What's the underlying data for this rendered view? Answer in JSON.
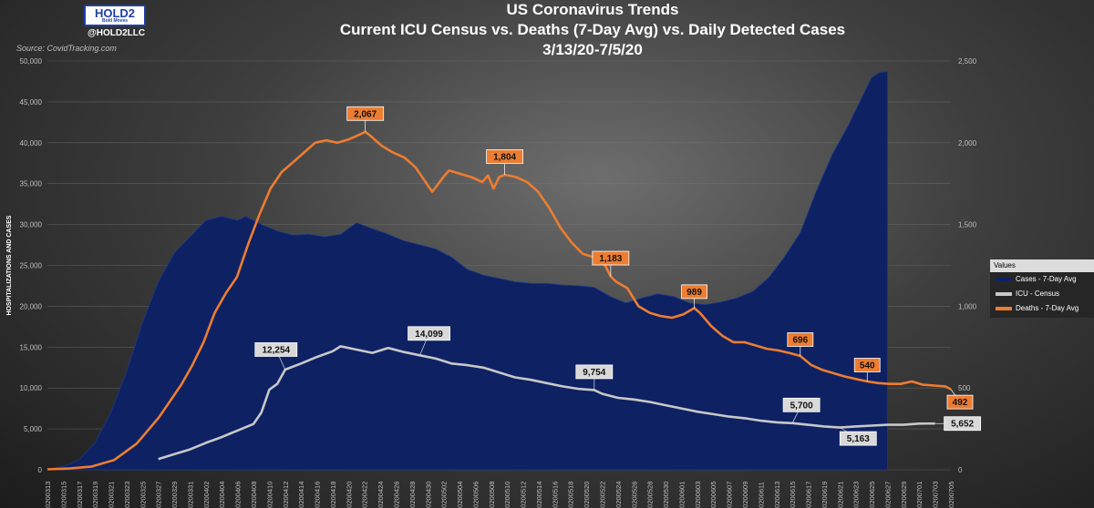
{
  "header": {
    "logo_text": "HOLD2",
    "logo_subtext": "Bold Moves",
    "handle": "@HOLD2LLC",
    "source": "Source: CovidTracking.com"
  },
  "title": {
    "line1": "US Coronavirus Trends",
    "line2": "Current ICU Census vs. Deaths (7-Day Avg) vs. Daily Detected Cases",
    "line3": "3/13/20-7/5/20"
  },
  "legend": {
    "title": "Values",
    "items": [
      "Cases - 7-Day Avg",
      "ICU - Census",
      "Deaths - 7-Day Avg"
    ]
  },
  "colors": {
    "cases": "#0e2163",
    "icu": "#c8c8c8",
    "deaths": "#ed7d31",
    "axis_text": "#bfbfbf"
  },
  "chart_data": {
    "type": "area+line",
    "ylabel": "HOSPITALIZATIONS AND CASES",
    "ylim": [
      0,
      50000
    ],
    "yticks": [
      "0",
      "5,000",
      "10,000",
      "15,000",
      "20,000",
      "25,000",
      "30,000",
      "35,000",
      "40,000",
      "45,000",
      "50,000"
    ],
    "y2lim": [
      0,
      2500
    ],
    "y2ticks": [
      "0",
      "500",
      "1,000",
      "1,500",
      "2,000",
      "2,500"
    ],
    "x_labels": [
      "20200313",
      "20200315",
      "20200317",
      "20200319",
      "20200321",
      "20200323",
      "20200325",
      "20200327",
      "20200329",
      "20200331",
      "20200402",
      "20200404",
      "20200406",
      "20200408",
      "20200410",
      "20200412",
      "20200414",
      "20200416",
      "20200418",
      "20200420",
      "20200422",
      "20200424",
      "20200426",
      "20200428",
      "20200430",
      "20200502",
      "20200504",
      "20200506",
      "20200508",
      "20200510",
      "20200512",
      "20200514",
      "20200516",
      "20200518",
      "20200520",
      "20200522",
      "20200524",
      "20200526",
      "20200528",
      "20200530",
      "20200601",
      "20200603",
      "20200605",
      "20200607",
      "20200609",
      "20200611",
      "20200613",
      "20200615",
      "20200617",
      "20200619",
      "20200621",
      "20200623",
      "20200625",
      "20200627",
      "20200629",
      "20200701",
      "20200703",
      "20200705"
    ],
    "series": [
      {
        "name": "Cases - 7-Day Avg",
        "axis": "left",
        "style": "area",
        "points": [
          [
            0,
            100
          ],
          [
            2,
            400
          ],
          [
            4,
            1200
          ],
          [
            6,
            3300
          ],
          [
            8,
            7000
          ],
          [
            10,
            12000
          ],
          [
            12,
            18000
          ],
          [
            14,
            23000
          ],
          [
            16,
            26500
          ],
          [
            18,
            28500
          ],
          [
            20,
            30500
          ],
          [
            22,
            31000
          ],
          [
            24,
            30500
          ],
          [
            25,
            31000
          ],
          [
            27,
            30000
          ],
          [
            29,
            29200
          ],
          [
            31,
            28700
          ],
          [
            33,
            28800
          ],
          [
            35,
            28500
          ],
          [
            37,
            28800
          ],
          [
            39,
            30200
          ],
          [
            41,
            29500
          ],
          [
            43,
            28800
          ],
          [
            45,
            28000
          ],
          [
            47,
            27500
          ],
          [
            49,
            27000
          ],
          [
            51,
            26000
          ],
          [
            53,
            24500
          ],
          [
            55,
            23800
          ],
          [
            57,
            23400
          ],
          [
            59,
            23000
          ],
          [
            61,
            22800
          ],
          [
            63,
            22800
          ],
          [
            65,
            22600
          ],
          [
            67,
            22500
          ],
          [
            69,
            22300
          ],
          [
            71,
            21200
          ],
          [
            73,
            20400
          ],
          [
            75,
            21000
          ],
          [
            77,
            21500
          ],
          [
            79,
            21200
          ],
          [
            81,
            20400
          ],
          [
            83,
            20200
          ],
          [
            85,
            20500
          ],
          [
            87,
            21000
          ],
          [
            89,
            21800
          ],
          [
            91,
            23500
          ],
          [
            93,
            26000
          ],
          [
            95,
            29000
          ],
          [
            97,
            34000
          ],
          [
            99,
            38500
          ],
          [
            101,
            42000
          ],
          [
            103,
            46000
          ],
          [
            104,
            48000
          ],
          [
            105,
            48600
          ],
          [
            106,
            48700
          ]
        ]
      },
      {
        "name": "ICU - Census",
        "axis": "left",
        "style": "line",
        "points": [
          [
            14,
            1300
          ],
          [
            16,
            1900
          ],
          [
            18,
            2500
          ],
          [
            20,
            3300
          ],
          [
            22,
            4000
          ],
          [
            24,
            4800
          ],
          [
            26,
            5600
          ],
          [
            27,
            7000
          ],
          [
            28,
            9800
          ],
          [
            29,
            10500
          ],
          [
            30,
            12254
          ],
          [
            32,
            13000
          ],
          [
            34,
            13800
          ],
          [
            36,
            14500
          ],
          [
            37,
            15100
          ],
          [
            39,
            14700
          ],
          [
            41,
            14300
          ],
          [
            43,
            14900
          ],
          [
            45,
            14400
          ],
          [
            47,
            14000
          ],
          [
            49,
            13600
          ],
          [
            51,
            13000
          ],
          [
            53,
            12800
          ],
          [
            55,
            12500
          ],
          [
            57,
            11900
          ],
          [
            59,
            11300
          ],
          [
            61,
            11000
          ],
          [
            63,
            10600
          ],
          [
            65,
            10200
          ],
          [
            67,
            9900
          ],
          [
            69,
            9754
          ],
          [
            70,
            9300
          ],
          [
            72,
            8800
          ],
          [
            74,
            8600
          ],
          [
            76,
            8300
          ],
          [
            78,
            7900
          ],
          [
            80,
            7500
          ],
          [
            82,
            7100
          ],
          [
            84,
            6800
          ],
          [
            86,
            6500
          ],
          [
            88,
            6300
          ],
          [
            90,
            6000
          ],
          [
            92,
            5800
          ],
          [
            94,
            5700
          ],
          [
            96,
            5500
          ],
          [
            98,
            5300
          ],
          [
            100,
            5163
          ],
          [
            102,
            5300
          ],
          [
            104,
            5400
          ],
          [
            106,
            5500
          ],
          [
            108,
            5500
          ],
          [
            110,
            5650
          ],
          [
            112,
            5652
          ]
        ]
      },
      {
        "name": "Deaths - 7-Day Avg",
        "axis": "right",
        "style": "line",
        "points": [
          [
            0,
            3
          ],
          [
            4,
            8
          ],
          [
            8,
            20
          ],
          [
            12,
            60
          ],
          [
            16,
            160
          ],
          [
            20,
            320
          ],
          [
            24,
            520
          ],
          [
            26,
            640
          ],
          [
            28,
            780
          ],
          [
            30,
            960
          ],
          [
            32,
            1080
          ],
          [
            34,
            1180
          ],
          [
            36,
            1380
          ],
          [
            38,
            1560
          ],
          [
            40,
            1720
          ],
          [
            42,
            1820
          ],
          [
            44,
            1880
          ],
          [
            46,
            1940
          ],
          [
            48,
            2000
          ],
          [
            50,
            2015
          ],
          [
            52,
            2000
          ],
          [
            54,
            2020
          ],
          [
            56,
            2050
          ],
          [
            57,
            2067
          ],
          [
            58,
            2040
          ],
          [
            60,
            1980
          ],
          [
            62,
            1940
          ],
          [
            64,
            1910
          ],
          [
            66,
            1850
          ],
          [
            68,
            1750
          ],
          [
            69,
            1700
          ],
          [
            71,
            1790
          ],
          [
            72,
            1830
          ],
          [
            74,
            1810
          ],
          [
            76,
            1790
          ],
          [
            78,
            1760
          ],
          [
            79,
            1800
          ],
          [
            80,
            1720
          ],
          [
            81,
            1790
          ],
          [
            82,
            1804
          ],
          [
            84,
            1790
          ],
          [
            86,
            1760
          ],
          [
            88,
            1700
          ],
          [
            90,
            1600
          ],
          [
            92,
            1480
          ],
          [
            94,
            1390
          ],
          [
            96,
            1320
          ],
          [
            98,
            1300
          ],
          [
            100,
            1250
          ],
          [
            101,
            1183
          ],
          [
            102,
            1150
          ],
          [
            104,
            1110
          ],
          [
            106,
            1000
          ],
          [
            108,
            960
          ],
          [
            110,
            940
          ],
          [
            112,
            930
          ],
          [
            114,
            950
          ],
          [
            116,
            989
          ],
          [
            117,
            960
          ],
          [
            119,
            880
          ],
          [
            121,
            820
          ],
          [
            123,
            780
          ],
          [
            125,
            780
          ],
          [
            127,
            760
          ],
          [
            129,
            740
          ],
          [
            131,
            730
          ],
          [
            133,
            715
          ],
          [
            135,
            696
          ],
          [
            137,
            640
          ],
          [
            139,
            610
          ],
          [
            141,
            590
          ],
          [
            143,
            570
          ],
          [
            145,
            555
          ],
          [
            147,
            540
          ],
          [
            149,
            530
          ],
          [
            151,
            525
          ],
          [
            153,
            525
          ],
          [
            155,
            540
          ],
          [
            157,
            520
          ],
          [
            159,
            515
          ],
          [
            161,
            510
          ],
          [
            162,
            492
          ]
        ]
      }
    ],
    "annotations": [
      {
        "series": "Deaths - 7-Day Avg",
        "label": "2,067"
      },
      {
        "series": "Deaths - 7-Day Avg",
        "label": "1,804"
      },
      {
        "series": "Deaths - 7-Day Avg",
        "label": "1,183"
      },
      {
        "series": "Deaths - 7-Day Avg",
        "label": "989"
      },
      {
        "series": "Deaths - 7-Day Avg",
        "label": "696"
      },
      {
        "series": "Deaths - 7-Day Avg",
        "label": "540"
      },
      {
        "series": "Deaths - 7-Day Avg",
        "label": "492"
      },
      {
        "series": "ICU - Census",
        "label": "12,254"
      },
      {
        "series": "ICU - Census",
        "label": "14,099"
      },
      {
        "series": "ICU - Census",
        "label": "9,754"
      },
      {
        "series": "ICU - Census",
        "label": "5,700"
      },
      {
        "series": "ICU - Census",
        "label": "5,163"
      },
      {
        "series": "ICU - Census",
        "label": "5,652"
      }
    ]
  }
}
